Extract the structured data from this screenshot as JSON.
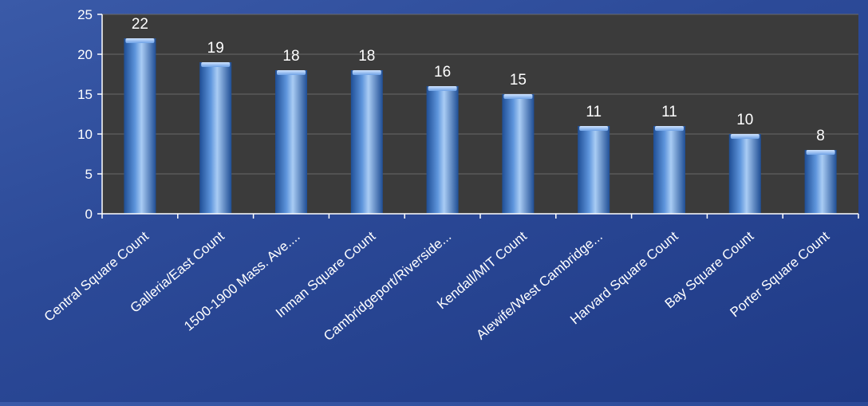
{
  "chart_data": {
    "type": "bar",
    "categories": [
      "Central Square Count",
      "Galleria/East Count",
      "1500-1900 Mass. Ave....",
      "Inman Square Count",
      "Cambridgeport/Riverside...",
      "Kendall/MIT Count",
      "Alewife/West Cambridge...",
      "Harvard Square Count",
      "Bay Square Count",
      "Porter Square Count"
    ],
    "values": [
      22,
      19,
      18,
      18,
      16,
      15,
      11,
      11,
      10,
      8
    ],
    "ylim": [
      0,
      25
    ],
    "yticks": [
      0,
      5,
      10,
      15,
      20,
      25
    ],
    "grid": true,
    "legend": "none",
    "colors": {
      "plot_bg": "#3b3b3b",
      "bar_dark": "#1f4e95",
      "bar_mid": "#5e95dc",
      "bar_light": "#a9ccf4",
      "axis": "#ffffff",
      "gridline": "#6a6a6a",
      "label_text": "#ffffff"
    }
  }
}
